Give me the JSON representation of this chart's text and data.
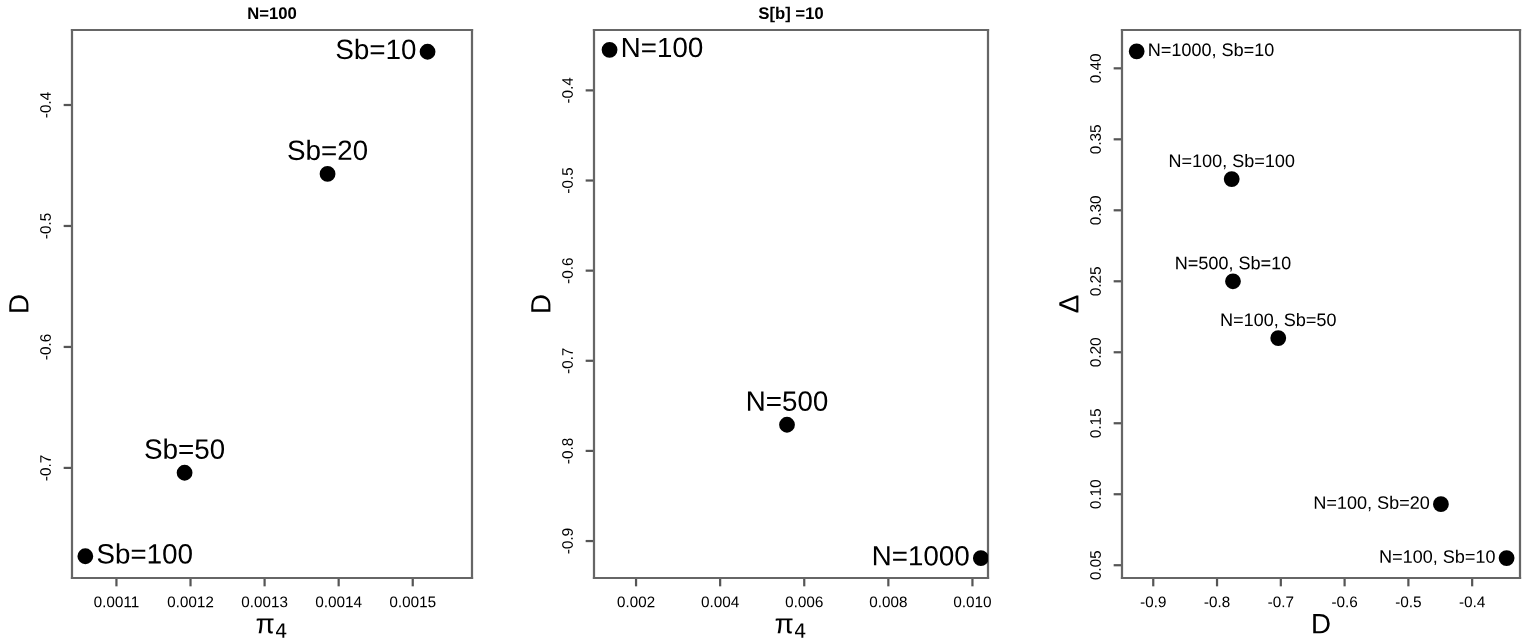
{
  "chart_data": [
    {
      "type": "scatter",
      "title": "N=100",
      "xlabel": "π$_{4}$",
      "ylabel": "D",
      "marker": "circle",
      "grid": false,
      "legend": false,
      "x": [
        0.00152,
        0.001385,
        0.001192,
        0.001058
      ],
      "series": [
        {
          "color": "#000000",
          "values": [
            -0.356,
            -0.457,
            -0.704,
            -0.773
          ]
        }
      ],
      "xlim": [
        0.00104,
        0.00158
      ],
      "ylim": [
        -0.791,
        -0.338
      ],
      "xticks": [
        0.0011,
        0.0012,
        0.0013,
        0.0014,
        0.0015
      ],
      "yticks": [
        -0.7,
        -0.6,
        -0.5,
        -0.4
      ],
      "annotations": [
        {
          "text": "Sb=10",
          "x": 0.00152,
          "y": -0.356
        },
        {
          "text": "Sb=20",
          "x": 0.001385,
          "y": -0.457
        },
        {
          "text": "Sb=50",
          "x": 0.001192,
          "y": -0.704
        },
        {
          "text": "Sb=100",
          "x": 0.001058,
          "y": -0.773
        }
      ]
    },
    {
      "type": "scatter",
      "title": "S[b] =10",
      "xlabel": "π$_{4}$",
      "ylabel": "D",
      "marker": "circle",
      "grid": false,
      "legend": false,
      "x": [
        0.00137,
        0.00559,
        0.0102
      ],
      "series": [
        {
          "color": "#000000",
          "values": [
            -0.355,
            -0.771,
            -0.919
          ]
        }
      ],
      "xlim": [
        0.001,
        0.01037
      ],
      "ylim": [
        -0.941,
        -0.333
      ],
      "xticks": [
        {
          "value": 0.002,
          "label": "0.002"
        },
        {
          "value": 0.004,
          "label": "0.004"
        },
        {
          "value": 0.006,
          "label": "0.006"
        },
        {
          "value": 0.008,
          "label": "0.008"
        },
        {
          "value": 0.01,
          "label": "0.010"
        }
      ],
      "yticks": [
        -0.9,
        -0.8,
        -0.7,
        -0.6,
        -0.5,
        -0.4
      ],
      "annotations": [
        {
          "text": "N=100",
          "x": 0.00137,
          "y": -0.355
        },
        {
          "text": "N=500",
          "x": 0.00559,
          "y": -0.771
        },
        {
          "text": "N=1000",
          "x": 0.0102,
          "y": -0.919
        }
      ]
    },
    {
      "type": "scatter",
      "xlabel": "D",
      "ylabel": "Δ",
      "marker": "circle",
      "grid": false,
      "legend": false,
      "x": [
        -0.926,
        -0.777,
        -0.775,
        -0.704,
        -0.449,
        -0.346
      ],
      "series": [
        {
          "color": "#000000",
          "values": [
            0.412,
            0.322,
            0.25,
            0.21,
            0.093,
            0.055
          ]
        }
      ],
      "xlim": [
        -0.949,
        -0.325
      ],
      "ylim": [
        0.041,
        0.427
      ],
      "xticks": [
        -0.9,
        -0.8,
        -0.7,
        -0.6,
        -0.5,
        -0.4
      ],
      "yticks": [
        {
          "value": 0.05,
          "label": "0.05"
        },
        {
          "value": 0.1,
          "label": "0.10"
        },
        {
          "value": 0.15,
          "label": "0.15"
        },
        {
          "value": 0.2,
          "label": "0.20"
        },
        {
          "value": 0.25,
          "label": "0.25"
        },
        {
          "value": 0.3,
          "label": "0.30"
        },
        {
          "value": 0.35,
          "label": "0.35"
        },
        {
          "value": 0.4,
          "label": "0.40"
        }
      ],
      "annotations": [
        {
          "text": "N=1000, Sb=10",
          "x": -0.926,
          "y": 0.412
        },
        {
          "text": "N=100, Sb=100",
          "x": -0.777,
          "y": 0.322
        },
        {
          "text": "N=500, Sb=10",
          "x": -0.775,
          "y": 0.25
        },
        {
          "text": "N=100, Sb=50",
          "x": -0.704,
          "y": 0.21
        },
        {
          "text": "N=100, Sb=20",
          "x": -0.449,
          "y": 0.093
        },
        {
          "text": "N=100, Sb=10",
          "x": -0.346,
          "y": 0.055
        }
      ]
    }
  ]
}
